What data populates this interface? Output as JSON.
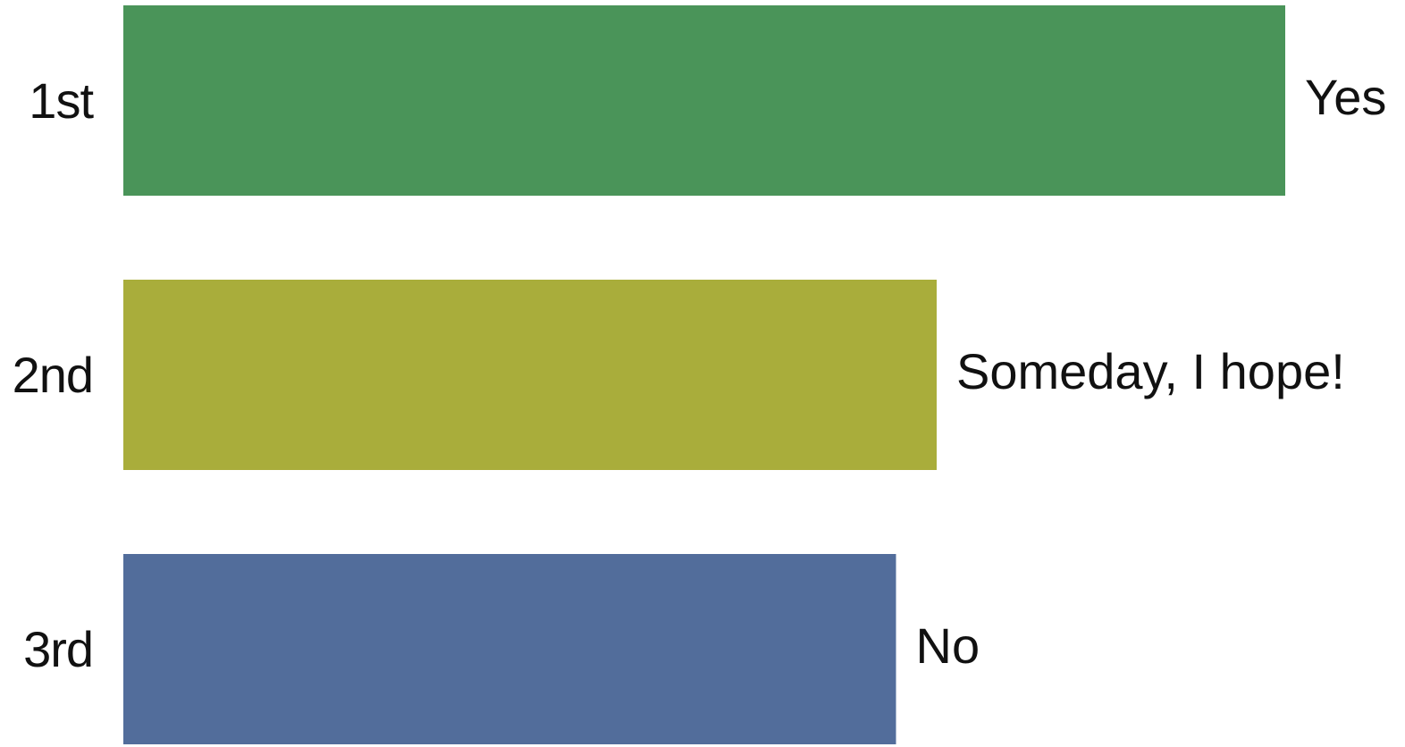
{
  "chart_data": {
    "type": "bar",
    "orientation": "horizontal",
    "categories": [
      "1st",
      "2nd",
      "3rd"
    ],
    "values": [
      100,
      70,
      66.5
    ],
    "value_labels": [
      "Yes",
      "Someday, I hope!",
      "No"
    ],
    "xlim": [
      0,
      100
    ],
    "colors": [
      "#4a9459",
      "#a9ad3b",
      "#526d9b"
    ],
    "title": "",
    "xlabel": "",
    "ylabel": "",
    "grid": false,
    "legend": false
  }
}
